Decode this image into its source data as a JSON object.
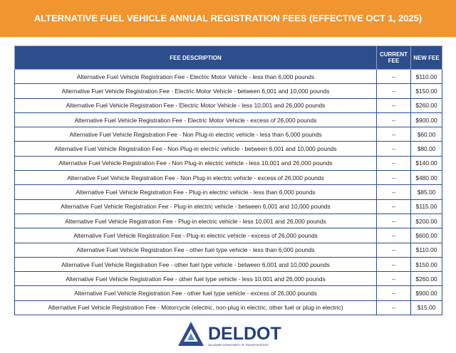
{
  "header": {
    "title": "ALTERNATIVE FUEL VEHICLE ANNUAL REGISTRATION FEES (EFFECTIVE OCT 1, 2025)"
  },
  "table": {
    "columns": [
      "FEE DESCRIPTION",
      "CURRENT FEE",
      "NEW FEE"
    ],
    "rows": [
      [
        "Alternative Fuel Vehicle Registration Fee - Electric Motor Vehicle - less than 6,000 pounds",
        "--",
        "$110.00"
      ],
      [
        "Alternative Fuel Vehicle Registration Fee - Electric Motor Vehicle - between 6,001 and 10,000 pounds",
        "--",
        "$150.00"
      ],
      [
        "Alternative Fuel Vehicle Registration Fee - Electric Motor Vehicle - less 10,001 and 26,000 pounds",
        "--",
        "$260.00"
      ],
      [
        "Alternative Fuel Vehicle Registration Fee - Electric Motor Vehicle - excess of 26,000 pounds",
        "--",
        "$900.00"
      ],
      [
        "Alternative Fuel Vehicle Registration Fee - Non Plug-in electric vehicle - less than 6,000 pounds",
        "--",
        "$60.00"
      ],
      [
        "Alternative Fuel Vehicle Registration Fee - Non Plug-in electric vehicle - between 6,001 and 10,000 pounds",
        "--",
        "$80.00"
      ],
      [
        "Alternative Fuel Vehicle Registration Fee - Non Plug-in electric vehicle - less 10,001 and 26,000 pounds",
        "--",
        "$140.00"
      ],
      [
        "Alternative Fuel Vehicle Registration Fee - Non Plug-in electric vehicle - excess of 26,000 pounds",
        "--",
        "$480.00"
      ],
      [
        "Alternative Fuel Vehicle Registration Fee - Plug-in electric vehicle - less than 6,000 pounds",
        "--",
        "$85.00"
      ],
      [
        "Alternative Fuel Vehicle Registration Fee - Plug-in electric vehicle - between 6,001 and 10,000 pounds",
        "--",
        "$115.00"
      ],
      [
        "Alternative Fuel Vehicle Registration Fee - Plug-in electric vehicle - less 10,001 and 26,000 pounds",
        "--",
        "$200.00"
      ],
      [
        "Alternative Fuel Vehicle Registration Fee - Plug-in electric vehicle - excess of 26,000 pounds",
        "--",
        "$600.00"
      ],
      [
        "Alternative Fuel Vehicle Registration Fee - other fuel type vehicle - less than 6,000 pounds",
        "--",
        "$110.00"
      ],
      [
        "Alternative Fuel Vehicle Registration Fee - other fuel type vehicle - between 6,001 and 10,000 pounds",
        "--",
        "$150.00"
      ],
      [
        "Alternative Fuel Vehicle Registration Fee - other fuel type vehicle - less 10,001 and 26,000 pounds",
        "--",
        "$260.00"
      ],
      [
        "Alternative Fuel Vehicle Registration Fee - other fuel type vehicle - excess of 26,000 pounds",
        "--",
        "$900.00"
      ],
      [
        "Alternative Fuel Vehicle Registration Fee - Motorcycle (electric, non-plug in electric, other fuel or plug-in electric)",
        "--",
        "$15.00"
      ]
    ]
  },
  "logo": {
    "name": "DELDOT",
    "tagline": "DELAWARE DEPARTMENT OF TRANSPORTATION"
  }
}
